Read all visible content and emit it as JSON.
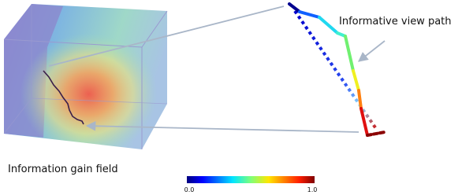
{
  "labels": {
    "path": "Informative view path",
    "field": "Information gain field"
  },
  "colorbar": {
    "min_label": "0.0",
    "max_label": "1.0"
  }
}
